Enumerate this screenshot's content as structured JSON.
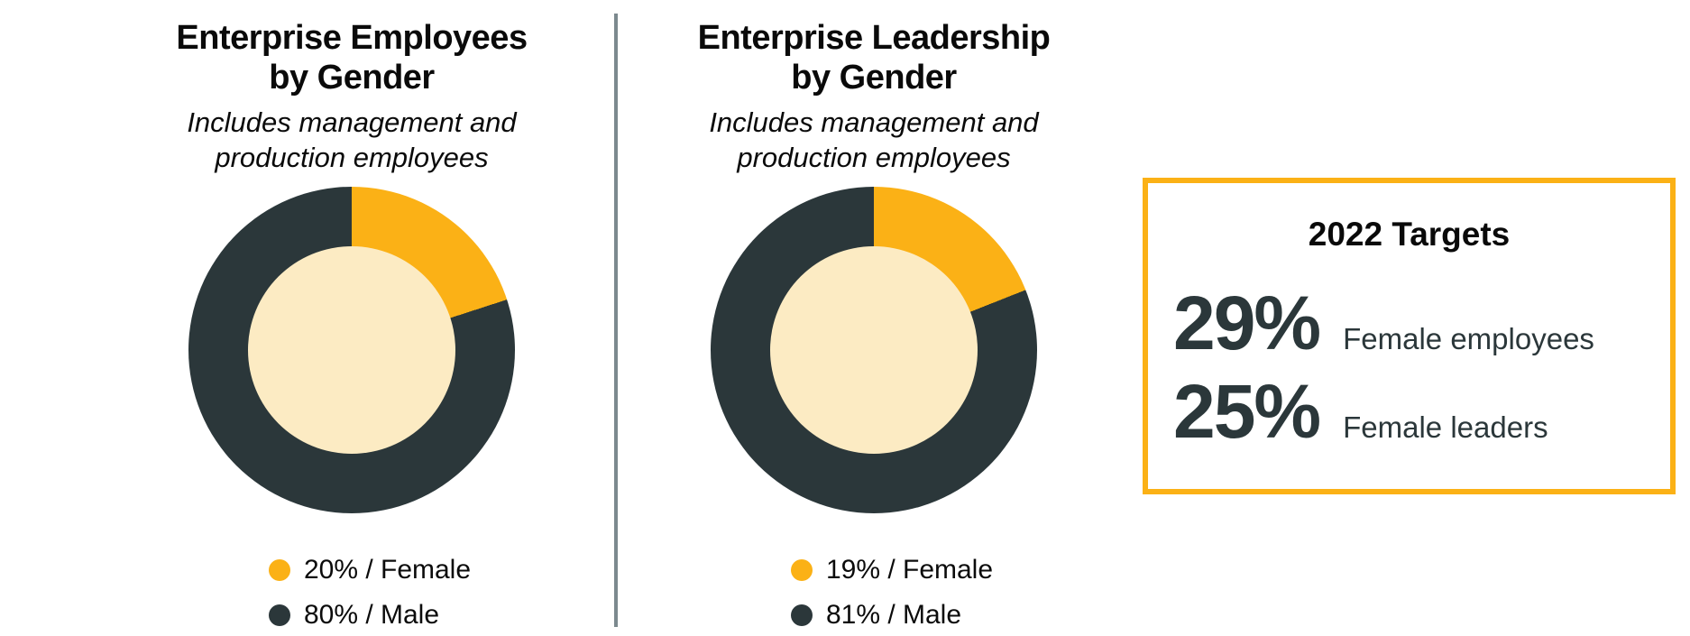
{
  "colors": {
    "female_yellow": "#fbb116",
    "male_dark": "#2b373a",
    "donut_hole": "#fcebc3",
    "targets_border": "#fbb116",
    "stat_text": "#2b373a",
    "divider_gray": "#7c898e"
  },
  "charts": [
    {
      "title_lines": [
        "Enterprise Employees",
        "by Gender"
      ],
      "subtitle_lines": [
        "Includes management and",
        "production employees"
      ],
      "legend": [
        {
          "label": "20% / Female"
        },
        {
          "label": "80% / Male"
        }
      ]
    },
    {
      "title_lines": [
        "Enterprise Leadership",
        "by Gender"
      ],
      "subtitle_lines": [
        "Includes management and",
        "production employees"
      ],
      "legend": [
        {
          "label": "19% / Female"
        },
        {
          "label": "81% / Male"
        }
      ]
    }
  ],
  "targets_panel": {
    "title": "2022 Targets",
    "stats": [
      {
        "value": "29%",
        "label": "Female employees"
      },
      {
        "value": "25%",
        "label": "Female leaders"
      }
    ]
  },
  "chart_data": [
    {
      "type": "pie",
      "variant": "donut",
      "title": "Enterprise Employees by Gender",
      "subtitle": "Includes management and production employees",
      "slices": [
        {
          "label": "Female",
          "value_pct": 20,
          "color": "#fbb116"
        },
        {
          "label": "Male",
          "value_pct": 80,
          "color": "#2b373a"
        }
      ],
      "legend_entries": [
        "20% / Female",
        "80% / Male"
      ],
      "start_angle": "12 o'clock",
      "direction": "clockwise",
      "legend_position": "bottom"
    },
    {
      "type": "pie",
      "variant": "donut",
      "title": "Enterprise Leadership by Gender",
      "subtitle": "Includes management and production employees",
      "slices": [
        {
          "label": "Female",
          "value_pct": 19,
          "color": "#fbb116"
        },
        {
          "label": "Male",
          "value_pct": 81,
          "color": "#2b373a"
        }
      ],
      "legend_entries": [
        "19% / Female",
        "81% / Male"
      ],
      "start_angle": "12 o'clock",
      "direction": "clockwise",
      "legend_position": "bottom"
    }
  ]
}
